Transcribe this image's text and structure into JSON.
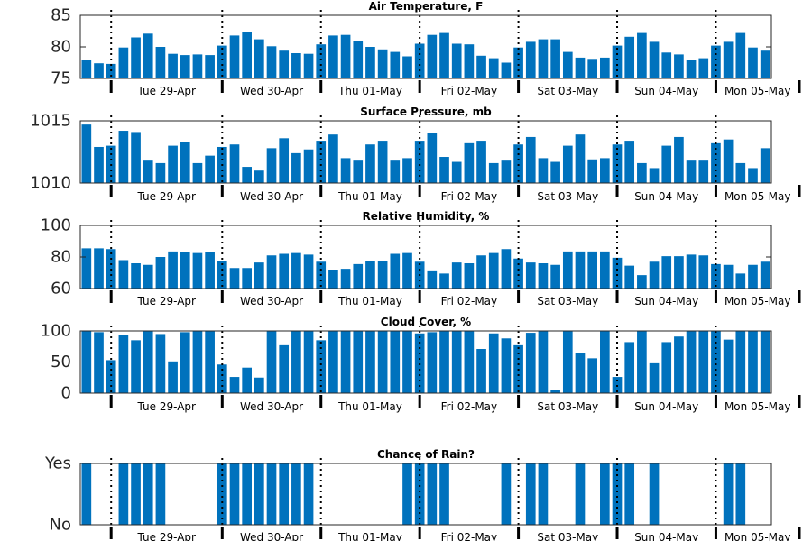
{
  "chart_data": [
    {
      "type": "bar",
      "title": "Air Temperature, F",
      "ylim": [
        75,
        85
      ],
      "yticks": [
        75,
        80,
        85
      ],
      "ytick_labels": [
        "75",
        "80",
        "85"
      ],
      "x_labels": [
        "Tue 29-Apr",
        "Wed 30-Apr",
        "Thu 01-May",
        "Fri 02-May",
        "Sat 03-May",
        "Sun 04-May",
        "Mon 05-May"
      ],
      "values": [
        78.0,
        77.4,
        77.3,
        79.9,
        81.5,
        82.1,
        80.0,
        78.9,
        78.7,
        78.8,
        78.7,
        80.2,
        81.8,
        82.3,
        81.2,
        80.1,
        79.4,
        79.0,
        78.9,
        80.4,
        81.8,
        81.9,
        80.9,
        80.0,
        79.6,
        79.2,
        78.5,
        80.5,
        81.9,
        82.2,
        80.5,
        80.4,
        78.6,
        78.2,
        77.5,
        79.9,
        80.8,
        81.2,
        81.2,
        79.2,
        78.3,
        78.1,
        78.3,
        80.2,
        81.6,
        82.2,
        80.8,
        79.1,
        78.8,
        77.9,
        78.2,
        80.2,
        80.8,
        82.2,
        79.9,
        79.4
      ]
    },
    {
      "type": "bar",
      "title": "Surface Pressure, mb",
      "ylim": [
        1010,
        1015
      ],
      "yticks": [
        1010,
        1015
      ],
      "ytick_labels": [
        "1010",
        "1015"
      ],
      "x_labels": [
        "Tue 29-Apr",
        "Wed 30-Apr",
        "Thu 01-May",
        "Fri 02-May",
        "Sat 03-May",
        "Sun 04-May",
        "Mon 05-May"
      ],
      "values": [
        1014.7,
        1012.9,
        1013.0,
        1014.2,
        1014.1,
        1011.8,
        1011.6,
        1013.0,
        1013.3,
        1011.6,
        1012.2,
        1012.9,
        1013.1,
        1011.3,
        1011.0,
        1012.8,
        1013.6,
        1012.4,
        1012.7,
        1013.4,
        1013.9,
        1012.0,
        1011.8,
        1013.1,
        1013.4,
        1011.8,
        1012.0,
        1013.4,
        1014.0,
        1012.1,
        1011.7,
        1013.2,
        1013.4,
        1011.6,
        1011.8,
        1013.1,
        1013.7,
        1012.0,
        1011.7,
        1013.0,
        1013.9,
        1011.9,
        1012.0,
        1013.1,
        1013.4,
        1011.6,
        1011.2,
        1013.0,
        1013.7,
        1011.8,
        1011.8,
        1013.2,
        1013.5,
        1011.6,
        1011.2,
        1012.8
      ]
    },
    {
      "type": "bar",
      "title": "Relative Humidity, %",
      "ylim": [
        60,
        100
      ],
      "yticks": [
        60,
        80,
        100
      ],
      "ytick_labels": [
        "60",
        "80",
        "100"
      ],
      "x_labels": [
        "Tue 29-Apr",
        "Wed 30-Apr",
        "Thu 01-May",
        "Fri 02-May",
        "Sat 03-May",
        "Sun 04-May",
        "Mon 05-May"
      ],
      "values": [
        85.5,
        85.5,
        85.0,
        78.0,
        76.0,
        75.0,
        80.0,
        83.5,
        83.0,
        82.5,
        83.0,
        77.5,
        73.0,
        73.0,
        76.5,
        81.0,
        82.0,
        82.5,
        81.5,
        77.0,
        72.0,
        72.5,
        75.5,
        77.5,
        77.5,
        82.0,
        82.5,
        77.0,
        71.5,
        69.5,
        76.5,
        76.0,
        81.0,
        82.5,
        85.0,
        79.0,
        76.5,
        76.0,
        75.0,
        83.5,
        83.5,
        83.5,
        83.5,
        79.5,
        74.5,
        68.5,
        77.0,
        80.5,
        80.5,
        81.5,
        81.0,
        75.5,
        75.0,
        69.5,
        75.0,
        77.0
      ]
    },
    {
      "type": "bar",
      "title": "Cloud Cover, %",
      "ylim": [
        0,
        100
      ],
      "yticks": [
        0,
        50,
        100
      ],
      "ytick_labels": [
        "0",
        "50",
        "100"
      ],
      "x_labels": [
        "Tue 29-Apr",
        "Wed 30-Apr",
        "Thu 01-May",
        "Fri 02-May",
        "Sat 03-May",
        "Sun 04-May",
        "Mon 05-May"
      ],
      "values": [
        100,
        98,
        53,
        93,
        85,
        100,
        95,
        51,
        98,
        100,
        100,
        46,
        26,
        41,
        25,
        100,
        77,
        100,
        100,
        85,
        100,
        100,
        100,
        100,
        100,
        100,
        100,
        96,
        98,
        100,
        100,
        100,
        71,
        96,
        88,
        77,
        97,
        100,
        5,
        100,
        65,
        56,
        100,
        26,
        82,
        100,
        48,
        82,
        91,
        100,
        100,
        100,
        86,
        100,
        100,
        100
      ]
    },
    {
      "type": "bar",
      "title": "Chance of Rain?",
      "ylim": [
        0,
        1
      ],
      "yticks": [
        0,
        1
      ],
      "ytick_labels": [
        "No",
        "Yes"
      ],
      "x_labels": [
        "Tue 29-Apr",
        "Wed 30-Apr",
        "Thu 01-May",
        "Fri 02-May",
        "Sat 03-May",
        "Sun 04-May",
        "Mon 05-May"
      ],
      "values": [
        1,
        0,
        0,
        1,
        1,
        1,
        1,
        0,
        0,
        0,
        0,
        1,
        1,
        1,
        1,
        1,
        1,
        1,
        1,
        0,
        0,
        0,
        0,
        0,
        0,
        0,
        1,
        1,
        1,
        1,
        0,
        0,
        0,
        0,
        1,
        0,
        1,
        1,
        0,
        0,
        1,
        0,
        1,
        1,
        1,
        0,
        1,
        0,
        0,
        0,
        0,
        0,
        1,
        1,
        0,
        0
      ]
    }
  ]
}
